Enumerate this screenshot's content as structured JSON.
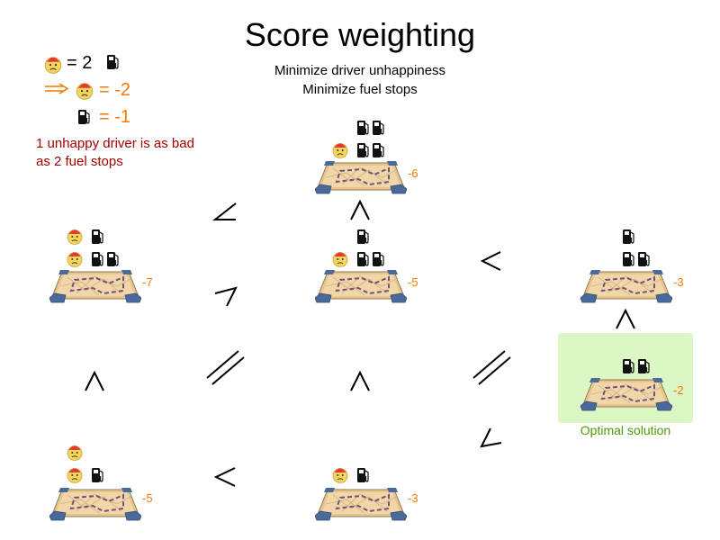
{
  "title": "Score weighting",
  "subtitle_lines": [
    "Minimize driver unhappiness",
    "Minimize fuel stops"
  ],
  "legend": {
    "driver_equals": "= 2",
    "driver_weight": "= -2",
    "fuel_weight": "= -1",
    "note_lines": [
      "1 unhappy driver is as bad",
      "as 2 fuel stops"
    ]
  },
  "nodes": {
    "top": {
      "score": "-6",
      "unhappy_drivers": 1,
      "fuel_stops": 4
    },
    "mid_left": {
      "score": "-7",
      "unhappy_drivers": 2,
      "fuel_stops": 3
    },
    "mid_center": {
      "score": "-5",
      "unhappy_drivers": 1,
      "fuel_stops": 3
    },
    "mid_right": {
      "score": "-3",
      "unhappy_drivers": 0,
      "fuel_stops": 3
    },
    "optimal": {
      "score": "-2",
      "unhappy_drivers": 0,
      "fuel_stops": 2,
      "label": "Optimal solution"
    },
    "bottom_left": {
      "score": "-5",
      "unhappy_drivers": 2,
      "fuel_stops": 1
    },
    "bottom_center": {
      "score": "-3",
      "unhappy_drivers": 1,
      "fuel_stops": 1
    }
  },
  "colors": {
    "score": "#f57900",
    "note": "#a40000",
    "optimal_bg": "#dcf7c4",
    "optimal_text": "#4e9a06",
    "arrow": "#f57900"
  },
  "icons": [
    "unhappy-driver-icon",
    "fuel-pump-icon",
    "map-route-icon",
    "comparison-sign"
  ]
}
